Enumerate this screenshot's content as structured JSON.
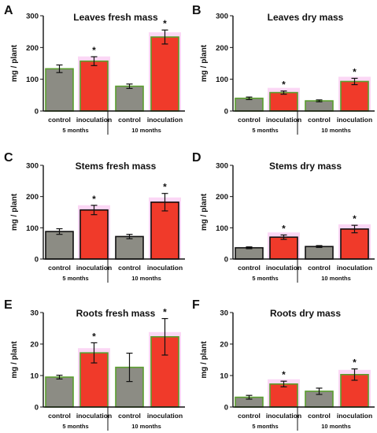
{
  "colors": {
    "control_fill": "#8c8c84",
    "inoculation_fill": "#f03a2a",
    "glow": "#f9c9f1",
    "axis": "#111111"
  },
  "chart_data": [
    {
      "type": "bar",
      "panel": "A",
      "title": "Leaves fresh mass",
      "ylabel": "mg / plant",
      "ylim": [
        0,
        300
      ],
      "yticks": [
        "0",
        "100",
        "200",
        "300"
      ],
      "categories": [
        "control",
        "inoculation",
        "control",
        "inoculation"
      ],
      "groups": [
        "5 months",
        "10 months"
      ],
      "values": [
        133,
        157,
        78,
        233
      ],
      "errors": [
        12,
        14,
        7,
        22
      ],
      "significant": [
        "",
        "*",
        "",
        "*"
      ],
      "outline": "#5a9e2e"
    },
    {
      "type": "bar",
      "panel": "B",
      "title": "Leaves dry mass",
      "ylabel": "mg / plant",
      "ylim": [
        0,
        300
      ],
      "yticks": [
        "0",
        "100",
        "200",
        "300"
      ],
      "categories": [
        "control",
        "inoculation",
        "control",
        "inoculation"
      ],
      "groups": [
        "5 months",
        "10 months"
      ],
      "values": [
        40,
        58,
        32,
        93
      ],
      "errors": [
        4,
        5,
        3,
        10
      ],
      "significant": [
        "",
        "*",
        "",
        "*"
      ],
      "outline": "#5a9e2e"
    },
    {
      "type": "bar",
      "panel": "C",
      "title": "Stems fresh mass",
      "ylabel": "mg / plant",
      "ylim": [
        0,
        300
      ],
      "yticks": [
        "0",
        "100",
        "200",
        "300"
      ],
      "categories": [
        "control",
        "inoculation",
        "control",
        "inoculation"
      ],
      "groups": [
        "5 months",
        "10 months"
      ],
      "values": [
        88,
        157,
        72,
        182
      ],
      "errors": [
        9,
        15,
        7,
        28
      ],
      "significant": [
        "",
        "*",
        "",
        "*"
      ],
      "outline": "#111111"
    },
    {
      "type": "bar",
      "panel": "D",
      "title": "Stems dry mass",
      "ylabel": "mg / plant",
      "ylim": [
        0,
        300
      ],
      "yticks": [
        "0",
        "100",
        "200",
        "300"
      ],
      "categories": [
        "control",
        "inoculation",
        "control",
        "inoculation"
      ],
      "groups": [
        "5 months",
        "10 months"
      ],
      "values": [
        36,
        70,
        40,
        96
      ],
      "errors": [
        3,
        7,
        3,
        12
      ],
      "significant": [
        "",
        "*",
        "",
        "*"
      ],
      "outline": "#111111"
    },
    {
      "type": "bar",
      "panel": "E",
      "title": "Roots fresh mass",
      "ylabel": "mg / plant",
      "ylim": [
        0,
        30
      ],
      "yticks": [
        "0",
        "10",
        "20",
        "30"
      ],
      "categories": [
        "control",
        "inoculation",
        "control",
        "inoculation"
      ],
      "groups": [
        "5 months",
        "10 months"
      ],
      "values": [
        9.5,
        17.2,
        12.6,
        22.3
      ],
      "errors": [
        0.6,
        3.2,
        4.5,
        5.8
      ],
      "significant": [
        "",
        "*",
        "",
        "*"
      ],
      "outline": "#5a9e2e"
    },
    {
      "type": "bar",
      "panel": "F",
      "title": "Roots dry mass",
      "ylabel": "mg / plant",
      "ylim": [
        0,
        30
      ],
      "yticks": [
        "0",
        "10",
        "20",
        "30"
      ],
      "categories": [
        "control",
        "inoculation",
        "control",
        "inoculation"
      ],
      "groups": [
        "5 months",
        "10 months"
      ],
      "values": [
        3.1,
        7.3,
        5.0,
        10.3
      ],
      "errors": [
        0.6,
        0.9,
        1.0,
        1.8
      ],
      "significant": [
        "",
        "*",
        "",
        "*"
      ],
      "outline": "#5a9e2e"
    }
  ]
}
